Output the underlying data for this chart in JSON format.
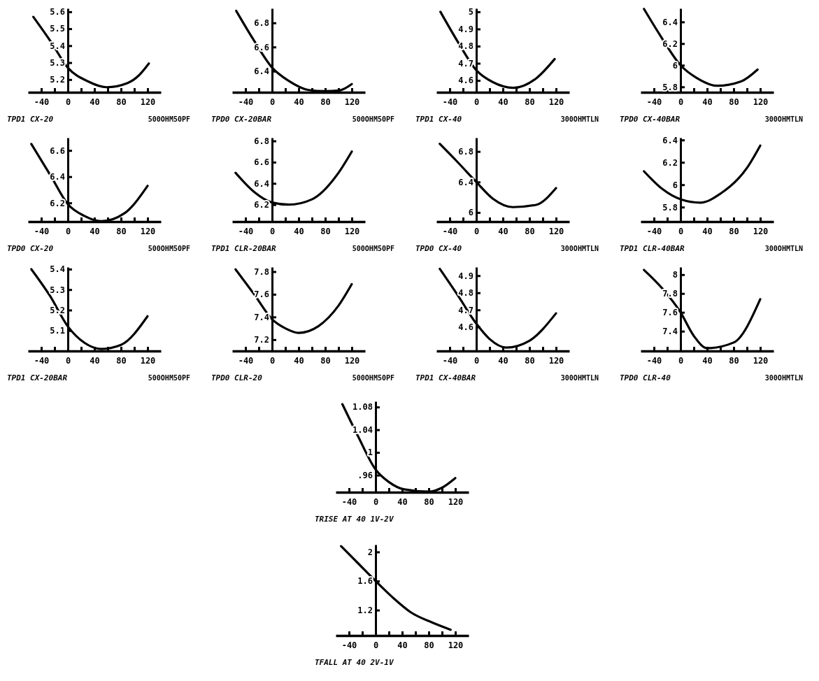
{
  "chart_data": [
    {
      "type": "line",
      "title": "TPD1 CX-20",
      "subtitle": "500OHM50PF",
      "x": [
        -52,
        -25,
        0,
        30,
        58,
        90,
        107,
        122
      ],
      "series": [
        {
          "color": "#000000",
          "values": [
            5.57,
            5.42,
            5.27,
            5.19,
            5.155,
            5.18,
            5.225,
            5.295
          ]
        }
      ],
      "xlim": [
        -60,
        140
      ],
      "xticks": [
        {
          "value": -40,
          "label": "-40"
        },
        {
          "value": -20,
          "label": null
        },
        0,
        {
          "value": 20,
          "label": null
        },
        40,
        {
          "value": 60,
          "label": null
        },
        80,
        {
          "value": 100,
          "label": null
        },
        120
      ],
      "ylim": [
        5.125,
        5.62
      ],
      "yticks": [
        5.2,
        5.3,
        5.4,
        5.5,
        5.6
      ]
    },
    {
      "type": "line",
      "title": "TPD0 CX-20BAR",
      "subtitle": "500OHM50PF",
      "x": [
        -54,
        -29,
        0,
        25,
        55,
        80,
        101,
        120
      ],
      "series": [
        {
          "color": "#000000",
          "values": [
            6.9,
            6.67,
            6.43,
            6.32,
            6.244,
            6.235,
            6.24,
            6.293
          ]
        }
      ],
      "xlim": [
        -60,
        140
      ],
      "xticks": [
        {
          "value": -40,
          "label": "-40"
        },
        {
          "value": -20,
          "label": null
        },
        0,
        {
          "value": 20,
          "label": null
        },
        40,
        {
          "value": 60,
          "label": null
        },
        80,
        {
          "value": 100,
          "label": null
        },
        120
      ],
      "ylim": [
        6.225,
        6.92
      ],
      "yticks": [
        6.4,
        6.6,
        6.8
      ]
    },
    {
      "type": "line",
      "title": "TPD1 CX-40",
      "subtitle": "300OHMTLN",
      "x": [
        -54,
        -27,
        0,
        25,
        56,
        91,
        118
      ],
      "series": [
        {
          "color": "#000000",
          "values": [
            5.0,
            4.82,
            4.66,
            4.59,
            4.557,
            4.615,
            4.725
          ]
        }
      ],
      "xlim": [
        -60,
        140
      ],
      "xticks": [
        {
          "value": -40,
          "label": "-40"
        },
        {
          "value": -20,
          "label": null
        },
        0,
        {
          "value": 20,
          "label": null
        },
        40,
        {
          "value": 60,
          "label": null
        },
        80,
        {
          "value": 100,
          "label": null
        },
        120
      ],
      "ylim": [
        4.531,
        5.02
      ],
      "yticks": [
        4.6,
        4.7,
        4.8,
        4.9,
        5
      ]
    },
    {
      "type": "line",
      "title": "TPD0 CX-40BAR",
      "subtitle": "300OHMTLN",
      "x": [
        -55,
        -29,
        0,
        25,
        55,
        91,
        116
      ],
      "series": [
        {
          "color": "#000000",
          "values": [
            6.52,
            6.26,
            6.0,
            5.88,
            5.81,
            5.85,
            5.96
          ]
        }
      ],
      "xlim": [
        -60,
        140
      ],
      "xticks": [
        {
          "value": -40,
          "label": "-40"
        },
        {
          "value": -20,
          "label": null
        },
        0,
        {
          "value": 20,
          "label": null
        },
        40,
        {
          "value": 60,
          "label": null
        },
        80,
        {
          "value": 100,
          "label": null
        },
        120
      ],
      "ylim": [
        5.75,
        6.525
      ],
      "yticks": [
        5.8,
        6,
        6.2,
        6.4
      ]
    },
    {
      "type": "line",
      "title": "TPD0 CX-20",
      "subtitle": "500OHM50PF",
      "x": [
        -55,
        -25,
        0,
        25,
        50,
        85,
        120
      ],
      "series": [
        {
          "color": "#000000",
          "values": [
            6.65,
            6.4,
            6.19,
            6.1,
            6.06,
            6.12,
            6.33
          ]
        }
      ],
      "xlim": [
        -60,
        140
      ],
      "xticks": [
        {
          "value": -40,
          "label": "-40"
        },
        {
          "value": -20,
          "label": null
        },
        0,
        {
          "value": 20,
          "label": null
        },
        40,
        {
          "value": 60,
          "label": null
        },
        80,
        {
          "value": 100,
          "label": null
        },
        120
      ],
      "ylim": [
        6.057,
        6.697
      ],
      "yticks": [
        6.2,
        6.4,
        6.6
      ]
    },
    {
      "type": "line",
      "title": "TPD1 CLR-20BAR",
      "subtitle": "500OHM50PF",
      "x": [
        -55,
        -27,
        0,
        25,
        60,
        100,
        120
      ],
      "series": [
        {
          "color": "#000000",
          "values": [
            6.5,
            6.32,
            6.22,
            6.2,
            6.25,
            6.5,
            6.7
          ]
        }
      ],
      "xlim": [
        -60,
        140
      ],
      "xticks": [
        {
          "value": -40,
          "label": "-40"
        },
        {
          "value": -20,
          "label": null
        },
        0,
        {
          "value": 20,
          "label": null
        },
        40,
        {
          "value": 60,
          "label": null
        },
        80,
        {
          "value": 100,
          "label": null
        },
        120
      ],
      "ylim": [
        6.04,
        6.83
      ],
      "yticks": [
        6.2,
        6.4,
        6.6,
        6.8
      ]
    },
    {
      "type": "line",
      "title": "TPD0 CX-40",
      "subtitle": "300OHMTLN",
      "x": [
        -55,
        -27,
        0,
        25,
        55,
        90,
        120
      ],
      "series": [
        {
          "color": "#000000",
          "values": [
            6.9,
            6.65,
            6.4,
            6.18,
            6.07,
            6.1,
            6.32
          ]
        }
      ],
      "xlim": [
        -60,
        140
      ],
      "xticks": [
        {
          "value": -40,
          "label": "-40"
        },
        {
          "value": -20,
          "label": null
        },
        0,
        {
          "value": 20,
          "label": null
        },
        40,
        {
          "value": 60,
          "label": null
        },
        80,
        {
          "value": 100,
          "label": null
        },
        120
      ],
      "ylim": [
        5.88,
        6.98
      ],
      "yticks": [
        6,
        6.4,
        6.8
      ]
    },
    {
      "type": "line",
      "title": "TPD1 CLR-40BAR",
      "subtitle": "300OHMTLN",
      "x": [
        -55,
        -27,
        0,
        30,
        60,
        100,
        120
      ],
      "series": [
        {
          "color": "#000000",
          "values": [
            6.12,
            5.96,
            5.87,
            5.84,
            5.92,
            6.15,
            6.35
          ]
        }
      ],
      "xlim": [
        -60,
        140
      ],
      "xticks": [
        {
          "value": -40,
          "label": "-40"
        },
        {
          "value": -20,
          "label": null
        },
        0,
        {
          "value": 20,
          "label": null
        },
        40,
        {
          "value": 60,
          "label": null
        },
        80,
        {
          "value": 100,
          "label": null
        },
        120
      ],
      "ylim": [
        5.67,
        6.42
      ],
      "yticks": [
        5.8,
        6,
        6.2,
        6.4
      ]
    },
    {
      "type": "line",
      "title": "TPD1 CX-20BAR",
      "subtitle": "500OHM50PF",
      "x": [
        -55,
        -27,
        0,
        25,
        50,
        80,
        120
      ],
      "series": [
        {
          "color": "#000000",
          "values": [
            5.4,
            5.27,
            5.12,
            5.04,
            5.01,
            5.03,
            5.17
          ]
        }
      ],
      "xlim": [
        -60,
        140
      ],
      "xticks": [
        {
          "value": -40,
          "label": "-40"
        },
        {
          "value": -20,
          "label": null
        },
        0,
        {
          "value": 20,
          "label": null
        },
        40,
        {
          "value": 60,
          "label": null
        },
        80,
        {
          "value": 100,
          "label": null
        },
        120
      ],
      "ylim": [
        5.0,
        5.41
      ],
      "yticks": [
        5.1,
        5.2,
        5.3,
        5.4
      ]
    },
    {
      "type": "line",
      "title": "TPD0 CLR-20",
      "subtitle": "500OHM50PF",
      "x": [
        -55,
        -27,
        0,
        20,
        40,
        70,
        100,
        120
      ],
      "series": [
        {
          "color": "#000000",
          "values": [
            7.82,
            7.6,
            7.38,
            7.3,
            7.26,
            7.32,
            7.5,
            7.69
          ]
        }
      ],
      "xlim": [
        -60,
        140
      ],
      "xticks": [
        {
          "value": -40,
          "label": "-40"
        },
        {
          "value": -20,
          "label": null
        },
        0,
        {
          "value": 20,
          "label": null
        },
        40,
        {
          "value": 60,
          "label": null
        },
        80,
        {
          "value": 100,
          "label": null
        },
        120
      ],
      "ylim": [
        7.1,
        7.84
      ],
      "yticks": [
        7.2,
        7.4,
        7.6,
        7.8
      ]
    },
    {
      "type": "line",
      "title": "TPD1 CX-40BAR",
      "subtitle": "300OHMTLN",
      "x": [
        -55,
        -27,
        0,
        20,
        45,
        80,
        120
      ],
      "series": [
        {
          "color": "#000000",
          "values": [
            4.94,
            4.78,
            4.62,
            4.53,
            4.48,
            4.52,
            4.68
          ]
        }
      ],
      "xlim": [
        -60,
        140
      ],
      "xticks": [
        {
          "value": -40,
          "label": "-40"
        },
        {
          "value": -20,
          "label": null
        },
        0,
        {
          "value": 20,
          "label": null
        },
        40,
        {
          "value": 60,
          "label": null
        },
        80,
        {
          "value": 100,
          "label": null
        },
        120
      ],
      "ylim": [
        4.46,
        4.95
      ],
      "yticks": [
        4.6,
        4.7,
        4.8,
        4.9
      ]
    },
    {
      "type": "line",
      "title": "TPD0 CLR-40",
      "subtitle": "300OHMTLN",
      "x": [
        -55,
        -27,
        0,
        20,
        40,
        80,
        120
      ],
      "series": [
        {
          "color": "#000000",
          "values": [
            8.05,
            7.85,
            7.6,
            7.35,
            7.22,
            7.28,
            7.74
          ]
        }
      ],
      "xlim": [
        -60,
        140
      ],
      "xticks": [
        {
          "value": -40,
          "label": "-40"
        },
        {
          "value": -20,
          "label": null
        },
        0,
        {
          "value": 20,
          "label": null
        },
        40,
        {
          "value": 60,
          "label": null
        },
        80,
        {
          "value": 100,
          "label": null
        },
        120
      ],
      "ylim": [
        7.19,
        8.08
      ],
      "yticks": [
        7.4,
        7.6,
        7.8,
        8
      ]
    },
    {
      "type": "line",
      "title": "TRISE AT 40 1V-2V",
      "x": [
        -50,
        -27,
        0,
        20,
        43,
        80,
        100,
        120
      ],
      "series": [
        {
          "color": "#000000",
          "values": [
            1.085,
            1.03,
            0.97,
            0.948,
            0.935,
            0.931,
            0.938,
            0.955
          ]
        }
      ],
      "xlim": [
        -60,
        140
      ],
      "xticks": [
        {
          "value": -40,
          "label": "-40"
        },
        {
          "value": -20,
          "label": null
        },
        0,
        {
          "value": 20,
          "label": null
        },
        40,
        {
          "value": 60,
          "label": null
        },
        80,
        {
          "value": 100,
          "label": null
        },
        120
      ],
      "ylim": [
        0.93,
        1.09
      ],
      "yticks": [
        {
          "value": 0.96,
          "label": ".96"
        },
        1,
        1.04,
        1.08
      ]
    },
    {
      "type": "line",
      "title": "TFALL AT 40 2V-1V",
      "x": [
        -52,
        -27,
        0,
        25,
        53,
        85,
        113
      ],
      "series": [
        {
          "color": "#000000",
          "values": [
            2.08,
            1.85,
            1.6,
            1.38,
            1.17,
            1.03,
            0.93
          ]
        }
      ],
      "xlim": [
        -60,
        140
      ],
      "xticks": [
        {
          "value": -40,
          "label": "-40"
        },
        {
          "value": -20,
          "label": null
        },
        0,
        {
          "value": 20,
          "label": null
        },
        40,
        {
          "value": 60,
          "label": null
        },
        80,
        {
          "value": 100,
          "label": null
        },
        120
      ],
      "ylim": [
        0.85,
        2.1
      ],
      "yticks": [
        1.2,
        1.6,
        2
      ]
    }
  ]
}
